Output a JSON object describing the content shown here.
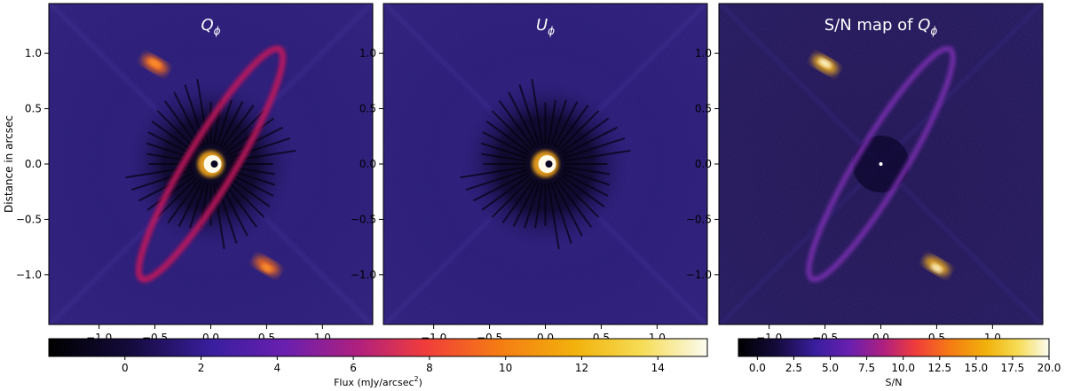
{
  "figure": {
    "panels": [
      {
        "id": "q_phi",
        "title_main": "Q",
        "title_sub": "ϕ",
        "title_prefix": "",
        "kind": "q"
      },
      {
        "id": "u_phi",
        "title_main": "U",
        "title_sub": "ϕ",
        "title_prefix": "",
        "kind": "u"
      },
      {
        "id": "snr",
        "title_main": "Q",
        "title_sub": "ϕ",
        "title_prefix": "S/N map of ",
        "kind": "s"
      }
    ],
    "y_axis_label": "Distance in arcsec",
    "x_tick_labels": [
      "−1.0",
      "−0.5",
      "0.0",
      "0.5",
      "1.0"
    ],
    "y_tick_labels": [
      "1.0",
      "0.5",
      "0.0",
      "−0.5",
      "−1.0"
    ]
  },
  "colorbars": [
    {
      "id": "flux",
      "label_prefix": "Flux (mJy/arcsec",
      "label_sup": "2",
      "label_suffix": ")",
      "tick_labels": [
        "0",
        "2",
        "4",
        "6",
        "8",
        "10",
        "12",
        "14"
      ],
      "range": [
        -2,
        15.3
      ],
      "ticks": [
        0,
        2,
        4,
        6,
        8,
        10,
        12,
        14
      ]
    },
    {
      "id": "sn",
      "label_prefix": "S/N",
      "label_sup": "",
      "label_suffix": "",
      "tick_labels": [
        "0.0",
        "2.5",
        "5.0",
        "7.5",
        "10.0",
        "12.5",
        "15.0",
        "17.5",
        "20.0"
      ],
      "range": [
        -1.3,
        20
      ],
      "ticks": [
        0,
        2.5,
        5,
        7.5,
        10,
        12.5,
        15,
        17.5,
        20
      ]
    }
  ],
  "colormap": "afmhot-like (black–blue–purple–red–orange–yellow–white)"
}
